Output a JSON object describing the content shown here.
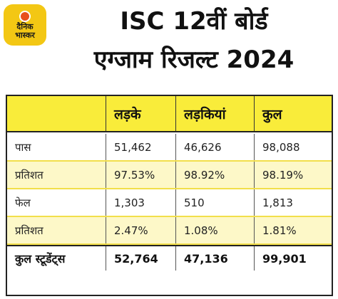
{
  "logo": {
    "line1": "दैनिक",
    "line2": "भास्कर"
  },
  "title": {
    "line1": "ISC 12वीं बोर्ड",
    "line2": "एग्जाम रिजल्ट 2024"
  },
  "table": {
    "headers": [
      "",
      "लड़के",
      "लड़कियां",
      "कुल"
    ],
    "rows": [
      [
        "पास",
        "51,462",
        "46,626",
        "98,088"
      ],
      [
        "प्रतिशत",
        "97.53%",
        "98.92%",
        "98.19%"
      ],
      [
        "फेल",
        "1,303",
        "510",
        "1,813"
      ],
      [
        "प्रतिशत",
        "2.47%",
        "1.08%",
        "1.81%"
      ]
    ],
    "total": [
      "कुल स्टूडेंट्स",
      "52,764",
      "47,136",
      "99,901"
    ]
  },
  "colors": {
    "header_bg": "#f9ec3a",
    "alt_row_bg": "#fdf8c8",
    "logo_bg": "#f3c714",
    "logo_sun": "#e8501a"
  }
}
